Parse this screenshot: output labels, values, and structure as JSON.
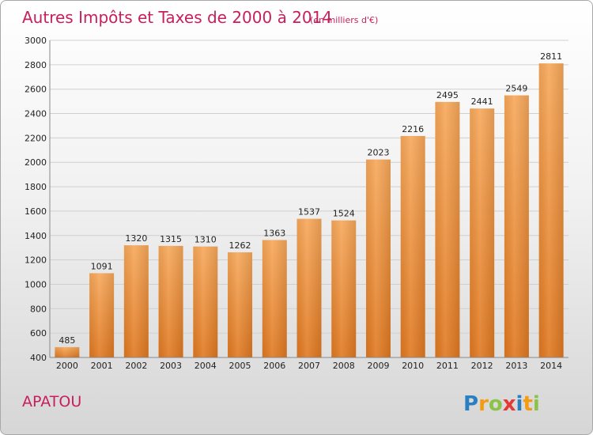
{
  "chart_data": {
    "type": "bar",
    "title": "Autres Impôts et Taxes de 2000 à 2014",
    "subtitle": "(en milliers d'€)",
    "categories": [
      "2000",
      "2001",
      "2002",
      "2003",
      "2004",
      "2005",
      "2006",
      "2007",
      "2008",
      "2009",
      "2010",
      "2011",
      "2012",
      "2013",
      "2014"
    ],
    "values": [
      485,
      1091,
      1320,
      1315,
      1310,
      1262,
      1363,
      1537,
      1524,
      2023,
      2216,
      2495,
      2441,
      2549,
      2811
    ],
    "yticks": [
      400,
      600,
      800,
      1000,
      1200,
      1400,
      1600,
      1800,
      2000,
      2200,
      2400,
      2600,
      2800,
      3000
    ],
    "ylim": [
      400,
      3000
    ],
    "grid": true,
    "legend": "none",
    "bar_color": "#f0932e",
    "bar_color_light": "#f7a85a",
    "bar_color_dark": "#e07820"
  },
  "commune": "APATOU",
  "logo": {
    "text": "Proxiti",
    "letters": [
      {
        "ch": "P",
        "color": "#2a7fc1"
      },
      {
        "ch": "r",
        "color": "#f39c12"
      },
      {
        "ch": "o",
        "color": "#8bc34a"
      },
      {
        "ch": "x",
        "color": "#e53935"
      },
      {
        "ch": "i",
        "color": "#2a7fc1"
      },
      {
        "ch": "t",
        "color": "#f39c12"
      },
      {
        "ch": "i",
        "color": "#8bc34a"
      }
    ]
  }
}
